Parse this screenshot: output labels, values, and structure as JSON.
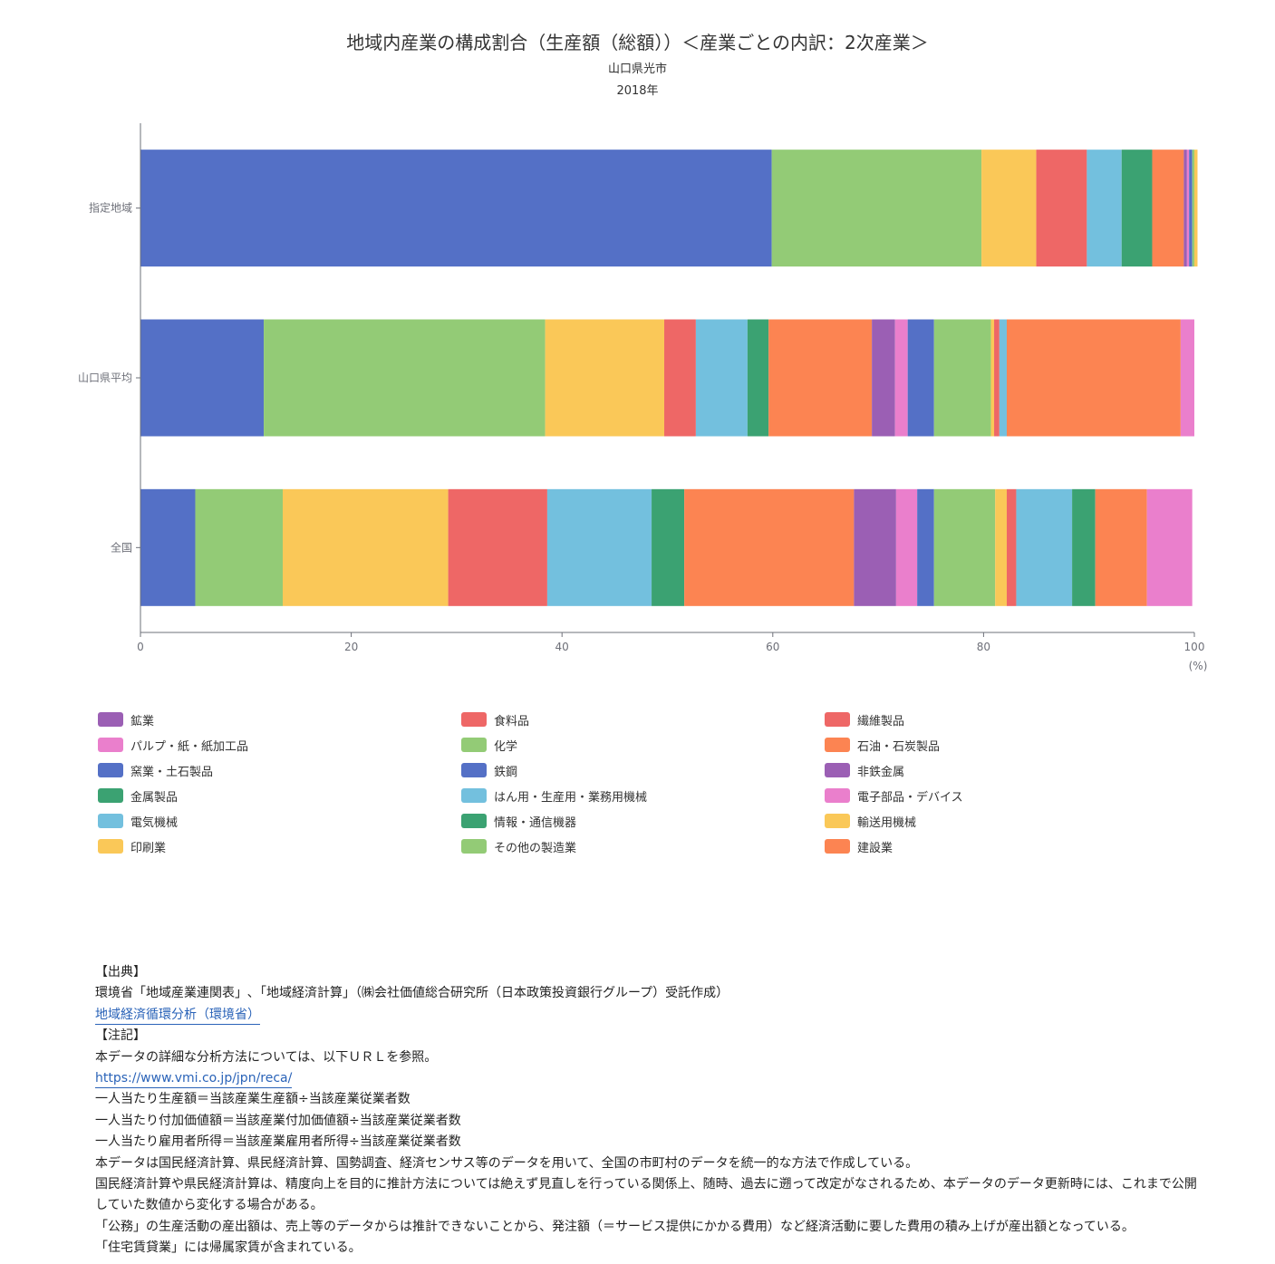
{
  "chart_data": {
    "type": "bar",
    "orientation": "horizontal",
    "stacked": true,
    "title": "地域内産業の構成割合（生産額（総額））＜産業ごとの内訳：2次産業＞",
    "subtitle": "山口県光市",
    "subtitle2": "2018年",
    "xunit": "(%)",
    "xlim": [
      0,
      100
    ],
    "xticks": [
      "0",
      "20",
      "40",
      "60",
      "80",
      "100"
    ],
    "categories": [
      "指定地域",
      "山口県平均",
      "全国"
    ],
    "legend_placement": "bottom",
    "series": [
      {
        "name": "鉱業",
        "color": "#9b5fb4",
        "values": [
          0.0,
          0.0,
          0.0
        ]
      },
      {
        "name": "食料品",
        "color": "#ee6766",
        "values": [
          0.0,
          0.0,
          0.0
        ]
      },
      {
        "name": "繊維製品",
        "color": "#ee6766",
        "values": [
          0.0,
          0.0,
          0.0
        ]
      },
      {
        "name": "パルプ・紙・紙加工品",
        "color": "#ea7fcc",
        "values": [
          0.0,
          0.0,
          0.0
        ]
      },
      {
        "name": "化学",
        "color": "#93cb76",
        "values": [
          0.0,
          0.0,
          0.0
        ]
      },
      {
        "name": "石油・石炭製品",
        "color": "#fc8452",
        "values": [
          0.0,
          0.0,
          0.0
        ]
      },
      {
        "name": "窯業・土石製品",
        "color": "#5470c6",
        "values": [
          59.9,
          11.7,
          5.2
        ]
      },
      {
        "name": "鉄鋼",
        "color": "#5470c6",
        "values": [
          0.0,
          0.0,
          0.0
        ]
      },
      {
        "name": "非鉄金属",
        "color": "#9b5fb4",
        "values": [
          0.0,
          0.0,
          0.0
        ]
      },
      {
        "name": "金属製品",
        "color": "#3ba272",
        "values": [
          0.0,
          0.0,
          0.0
        ]
      },
      {
        "name": "はん用・生産用・業務用機械",
        "color": "#73c0de",
        "values": [
          0.0,
          0.0,
          0.0
        ]
      },
      {
        "name": "電子部品・デバイス",
        "color": "#ea7fcc",
        "values": [
          0.0,
          0.0,
          0.0
        ]
      },
      {
        "name": "電気機械",
        "color": "#73c0de",
        "values": [
          0.0,
          0.0,
          0.0
        ]
      },
      {
        "name": "情報・通信機器",
        "color": "#3ba272",
        "values": [
          0.0,
          0.0,
          0.0
        ]
      },
      {
        "name": "輸送用機械",
        "color": "#fac858",
        "values": [
          0.0,
          0.0,
          0.0
        ]
      },
      {
        "name": "印刷業",
        "color": "#fac858",
        "values": [
          0.0,
          0.0,
          0.0
        ]
      },
      {
        "name": "その他の製造業",
        "color": "#93cb76",
        "values": [
          0.0,
          0.0,
          0.0
        ]
      },
      {
        "name": "建設業",
        "color": "#fc8452",
        "values": [
          0.0,
          0.0,
          0.0
        ]
      }
    ],
    "stack_order": [
      {
        "cat": 0,
        "segments": [
          {
            "color": "#5470c6",
            "value": 59.9
          },
          {
            "color": "#93cb76",
            "value": 19.9
          },
          {
            "color": "#fac858",
            "value": 5.2
          },
          {
            "color": "#ee6766",
            "value": 4.8
          },
          {
            "color": "#73c0de",
            "value": 3.3
          },
          {
            "color": "#3ba272",
            "value": 2.9
          },
          {
            "color": "#fc8452",
            "value": 3.0
          },
          {
            "color": "#9b5fb4",
            "value": 0.3
          },
          {
            "color": "#ea7fcc",
            "value": 0.2
          },
          {
            "color": "#5470c6",
            "value": 0.3
          },
          {
            "color": "#93cb76",
            "value": 0.2
          },
          {
            "color": "#fac858",
            "value": 0.3
          }
        ]
      },
      {
        "cat": 1,
        "segments": [
          {
            "color": "#5470c6",
            "value": 11.7
          },
          {
            "color": "#93cb76",
            "value": 26.7
          },
          {
            "color": "#fac858",
            "value": 11.3
          },
          {
            "color": "#ee6766",
            "value": 3.0
          },
          {
            "color": "#73c0de",
            "value": 4.9
          },
          {
            "color": "#3ba272",
            "value": 2.0
          },
          {
            "color": "#fc8452",
            "value": 9.8
          },
          {
            "color": "#9b5fb4",
            "value": 2.2
          },
          {
            "color": "#ea7fcc",
            "value": 1.2
          },
          {
            "color": "#5470c6",
            "value": 2.5
          },
          {
            "color": "#93cb76",
            "value": 5.4
          },
          {
            "color": "#fac858",
            "value": 0.3
          },
          {
            "color": "#ee6766",
            "value": 0.5
          },
          {
            "color": "#73c0de",
            "value": 0.7
          },
          {
            "color": "#fc8452",
            "value": 16.5
          },
          {
            "color": "#ea7fcc",
            "value": 1.3
          }
        ]
      },
      {
        "cat": 2,
        "segments": [
          {
            "color": "#5470c6",
            "value": 5.2
          },
          {
            "color": "#93cb76",
            "value": 8.3
          },
          {
            "color": "#fac858",
            "value": 15.7
          },
          {
            "color": "#ee6766",
            "value": 9.4
          },
          {
            "color": "#73c0de",
            "value": 9.9
          },
          {
            "color": "#3ba272",
            "value": 3.1
          },
          {
            "color": "#fc8452",
            "value": 16.1
          },
          {
            "color": "#9b5fb4",
            "value": 4.0
          },
          {
            "color": "#ea7fcc",
            "value": 2.0
          },
          {
            "color": "#5470c6",
            "value": 1.6
          },
          {
            "color": "#93cb76",
            "value": 5.8
          },
          {
            "color": "#fac858",
            "value": 1.1
          },
          {
            "color": "#ee6766",
            "value": 0.9
          },
          {
            "color": "#73c0de",
            "value": 5.3
          },
          {
            "color": "#3ba272",
            "value": 2.2
          },
          {
            "color": "#fc8452",
            "value": 4.9
          },
          {
            "color": "#ea7fcc",
            "value": 4.3
          }
        ]
      }
    ]
  },
  "notes": {
    "source_heading": "【出典】",
    "source_text": "環境省「地域産業連関表」､「地域経済計算」（㈱会社価値総合研究所（日本政策投資銀行グループ）受託作成）",
    "source_link": "地域経済循環分析（環境省）",
    "notes_heading": "【注記】",
    "note1": "本データの詳細な分析方法については、以下ＵＲＬを参照。",
    "url": "https://www.vmi.co.jp/jpn/reca/",
    "note2": "一人当たり生産額＝当該産業生産額÷当該産業従業者数",
    "note3": "一人当たり付加価値額＝当該産業付加価値額÷当該産業従業者数",
    "note4": "一人当たり雇用者所得＝当該産業雇用者所得÷当該産業従業者数",
    "note5": "本データは国民経済計算、県民経済計算、国勢調査、経済センサス等のデータを用いて、全国の市町村のデータを統一的な方法で作成している。",
    "note6": "国民経済計算や県民経済計算は、精度向上を目的に推計方法については絶えず見直しを行っている関係上、随時、過去に遡って改定がなされるため、本データのデータ更新時には、これまで公開していた数値から変化する場合がある。",
    "note7": "「公務」の生産活動の産出額は、売上等のデータからは推計できないことから、発注額（＝サービス提供にかかる費用）など経済活動に要した費用の積み上げが産出額となっている。",
    "note8": "「住宅賃貸業」には帰属家賃が含まれている。"
  }
}
